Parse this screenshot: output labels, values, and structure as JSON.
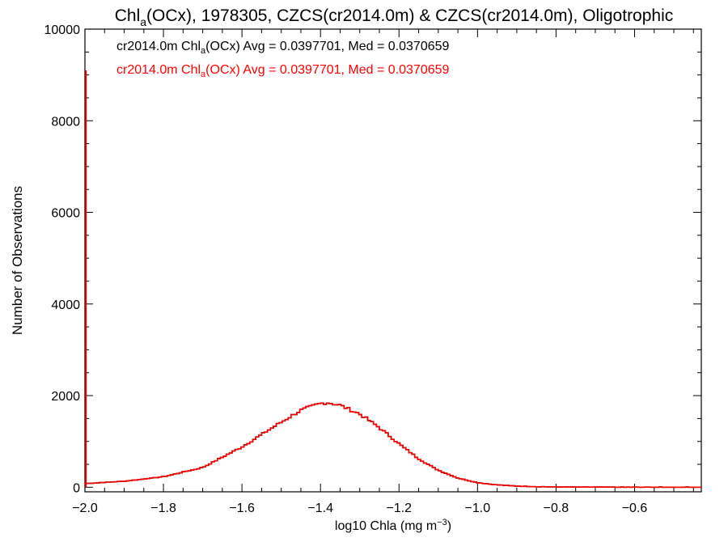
{
  "chart_data": {
    "type": "line",
    "title_pre": "Chl",
    "title_sub": "a",
    "title_post": "(OCx), 1978305, CZCS(cr2014.0m) & CZCS(cr2014.0m), Oligotrophic",
    "xlabel_pre": "log10 Chla (mg m",
    "xlabel_sup": "−3",
    "xlabel_post": ")",
    "ylabel": "Number of Observations",
    "xlim": [
      -2.0,
      -0.43
    ],
    "ylim": [
      -100,
      10000
    ],
    "x_ticks": [
      -2.0,
      -1.8,
      -1.6,
      -1.4,
      -1.2,
      -1.0,
      -0.8,
      -0.6
    ],
    "x_tick_labels": [
      "−2.0",
      "−1.8",
      "−1.6",
      "−1.4",
      "−1.2",
      "−1.0",
      "−0.8",
      "−0.6"
    ],
    "y_ticks": [
      0,
      2000,
      4000,
      6000,
      8000,
      10000
    ],
    "y_tick_labels": [
      "0",
      "2000",
      "4000",
      "6000",
      "8000",
      "10000"
    ],
    "grid": false,
    "legend_placement": "top-left",
    "series": [
      {
        "name_pre": "cr2014.0m Chl",
        "name_sub": "a",
        "name_post": "(OCx) Avg = 0.0397701, Med = 0.0370659",
        "color": "#000000",
        "x": [
          -2.0,
          -1.9,
          -1.8,
          -1.7,
          -1.6,
          -1.5,
          -1.45,
          -1.4,
          -1.38,
          -1.35,
          -1.3,
          -1.25,
          -1.2,
          -1.15,
          -1.1,
          -1.05,
          -1.0,
          -0.95,
          -0.9,
          -0.85,
          -0.8,
          -0.75,
          -0.7,
          -0.6,
          -0.5,
          -0.43
        ],
        "y": [
          80,
          130,
          230,
          430,
          880,
          1420,
          1680,
          1830,
          1850,
          1790,
          1600,
          1300,
          950,
          620,
          370,
          200,
          100,
          50,
          25,
          12,
          6,
          3,
          2,
          0,
          0,
          0
        ]
      },
      {
        "name_pre": "cr2014.0m Chl",
        "name_sub": "a",
        "name_post": "(OCx) Avg = 0.0397701, Med = 0.0370659",
        "color": "#ff0000",
        "x": [
          -2.0,
          -1.9,
          -1.8,
          -1.7,
          -1.6,
          -1.5,
          -1.45,
          -1.4,
          -1.38,
          -1.35,
          -1.3,
          -1.25,
          -1.2,
          -1.15,
          -1.1,
          -1.05,
          -1.0,
          -0.95,
          -0.9,
          -0.85,
          -0.8,
          -0.75,
          -0.7,
          -0.6,
          -0.5,
          -0.43
        ],
        "y": [
          80,
          130,
          230,
          430,
          880,
          1420,
          1680,
          1830,
          1850,
          1790,
          1600,
          1300,
          950,
          620,
          370,
          200,
          100,
          50,
          25,
          12,
          6,
          3,
          2,
          0,
          0,
          0
        ]
      }
    ],
    "spike": {
      "x": -2.0,
      "y": 9100
    }
  }
}
